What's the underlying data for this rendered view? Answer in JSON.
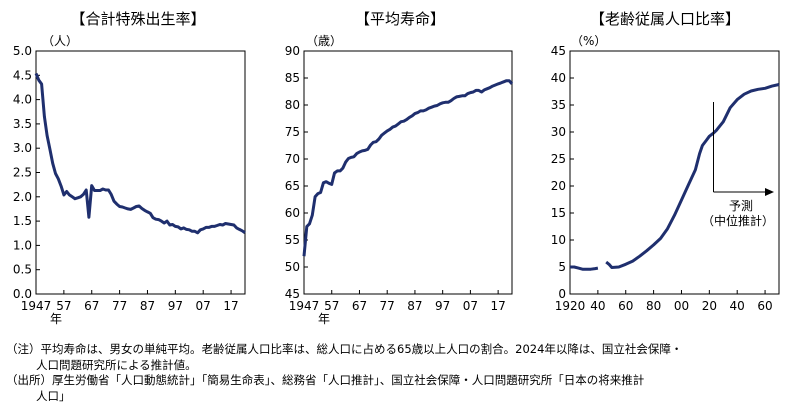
{
  "chart_data": [
    {
      "type": "line",
      "title": "【合計特殊出生率】",
      "ylabel": "（人）",
      "xlabel": "年",
      "ylim": [
        0,
        5
      ],
      "yticks": [
        "0.0",
        "0.5",
        "1.0",
        "1.5",
        "2.0",
        "2.5",
        "3.0",
        "3.5",
        "4.0",
        "4.5",
        "5.0"
      ],
      "xlim": [
        1947,
        2022
      ],
      "xticks": [
        {
          "x": 1947,
          "label": "1947"
        },
        {
          "x": 1957,
          "label": "57"
        },
        {
          "x": 1967,
          "label": "67"
        },
        {
          "x": 1977,
          "label": "77"
        },
        {
          "x": 1987,
          "label": "87"
        },
        {
          "x": 1997,
          "label": "97"
        },
        {
          "x": 2007,
          "label": "07"
        },
        {
          "x": 2017,
          "label": "17"
        }
      ],
      "color": "#1f2f6e",
      "x": [
        1947,
        1948,
        1949,
        1950,
        1951,
        1952,
        1953,
        1954,
        1955,
        1956,
        1957,
        1958,
        1959,
        1960,
        1961,
        1962,
        1963,
        1964,
        1965,
        1966,
        1967,
        1968,
        1969,
        1970,
        1971,
        1972,
        1973,
        1974,
        1975,
        1976,
        1977,
        1978,
        1979,
        1980,
        1981,
        1982,
        1983,
        1984,
        1985,
        1986,
        1987,
        1988,
        1989,
        1990,
        1991,
        1992,
        1993,
        1994,
        1995,
        1996,
        1997,
        1998,
        1999,
        2000,
        2001,
        2002,
        2003,
        2004,
        2005,
        2006,
        2007,
        2008,
        2009,
        2010,
        2011,
        2012,
        2013,
        2014,
        2015,
        2016,
        2017,
        2018,
        2019,
        2020,
        2021,
        2022
      ],
      "y": [
        4.54,
        4.4,
        4.32,
        3.65,
        3.26,
        2.98,
        2.69,
        2.48,
        2.37,
        2.22,
        2.04,
        2.11,
        2.04,
        2.0,
        1.96,
        1.98,
        2.0,
        2.05,
        2.14,
        1.58,
        2.23,
        2.13,
        2.13,
        2.13,
        2.16,
        2.14,
        2.14,
        2.05,
        1.91,
        1.85,
        1.8,
        1.79,
        1.77,
        1.75,
        1.74,
        1.77,
        1.8,
        1.81,
        1.76,
        1.72,
        1.69,
        1.66,
        1.57,
        1.54,
        1.53,
        1.5,
        1.46,
        1.5,
        1.42,
        1.43,
        1.39,
        1.38,
        1.34,
        1.36,
        1.33,
        1.32,
        1.29,
        1.29,
        1.26,
        1.32,
        1.34,
        1.37,
        1.37,
        1.39,
        1.39,
        1.41,
        1.43,
        1.42,
        1.45,
        1.44,
        1.43,
        1.42,
        1.36,
        1.33,
        1.3,
        1.26
      ]
    },
    {
      "type": "line",
      "title": "【平均寿命】",
      "ylabel": "（歳）",
      "xlabel": "年",
      "ylim": [
        45,
        90
      ],
      "yticks": [
        "45",
        "50",
        "55",
        "60",
        "65",
        "70",
        "75",
        "80",
        "85",
        "90"
      ],
      "xlim": [
        1947,
        2022
      ],
      "xticks": [
        {
          "x": 1947,
          "label": "1947"
        },
        {
          "x": 1957,
          "label": "57"
        },
        {
          "x": 1967,
          "label": "67"
        },
        {
          "x": 1977,
          "label": "77"
        },
        {
          "x": 1987,
          "label": "87"
        },
        {
          "x": 1997,
          "label": "97"
        },
        {
          "x": 2007,
          "label": "07"
        },
        {
          "x": 2017,
          "label": "17"
        }
      ],
      "color": "#1f2f6e",
      "x": [
        1947,
        1948,
        1949,
        1950,
        1951,
        1952,
        1953,
        1954,
        1955,
        1956,
        1957,
        1958,
        1959,
        1960,
        1961,
        1962,
        1963,
        1964,
        1965,
        1966,
        1967,
        1968,
        1969,
        1970,
        1971,
        1972,
        1973,
        1974,
        1975,
        1976,
        1977,
        1978,
        1979,
        1980,
        1981,
        1982,
        1983,
        1984,
        1985,
        1986,
        1987,
        1988,
        1989,
        1990,
        1991,
        1992,
        1993,
        1994,
        1995,
        1996,
        1997,
        1998,
        1999,
        2000,
        2001,
        2002,
        2003,
        2004,
        2005,
        2006,
        2007,
        2008,
        2009,
        2010,
        2011,
        2012,
        2013,
        2014,
        2015,
        2016,
        2017,
        2018,
        2019,
        2020,
        2021,
        2022
      ],
      "y": [
        52.0,
        57.5,
        58.0,
        59.6,
        63.0,
        63.6,
        63.8,
        65.6,
        65.8,
        65.5,
        65.3,
        67.4,
        67.8,
        67.8,
        68.3,
        69.4,
        70.1,
        70.3,
        70.4,
        71.0,
        71.3,
        71.5,
        71.6,
        71.8,
        72.6,
        73.1,
        73.2,
        73.7,
        74.4,
        74.8,
        75.2,
        75.5,
        75.9,
        76.1,
        76.5,
        76.9,
        77.0,
        77.3,
        77.7,
        78.0,
        78.4,
        78.6,
        78.9,
        78.9,
        79.1,
        79.4,
        79.6,
        79.8,
        79.9,
        80.2,
        80.4,
        80.5,
        80.5,
        80.8,
        81.2,
        81.5,
        81.6,
        81.7,
        81.7,
        82.1,
        82.3,
        82.4,
        82.7,
        82.7,
        82.4,
        82.8,
        83.0,
        83.2,
        83.5,
        83.7,
        83.9,
        84.1,
        84.3,
        84.5,
        84.5,
        83.9
      ]
    },
    {
      "type": "line",
      "title": "【老齢従属人口比率】",
      "ylabel": "（%）",
      "xlabel": "",
      "ylim": [
        0,
        45
      ],
      "yticks": [
        "0",
        "5",
        "10",
        "15",
        "20",
        "25",
        "30",
        "35",
        "40",
        "45"
      ],
      "xlim": [
        1920,
        2070
      ],
      "xticks": [
        {
          "x": 1920,
          "label": "1920"
        },
        {
          "x": 1940,
          "label": "40"
        },
        {
          "x": 1960,
          "label": "60"
        },
        {
          "x": 1980,
          "label": "80"
        },
        {
          "x": 2000,
          "label": "00"
        },
        {
          "x": 2020,
          "label": "20"
        },
        {
          "x": 2040,
          "label": "40"
        },
        {
          "x": 2060,
          "label": "60"
        }
      ],
      "color": "#1f2f6e",
      "series": [
        {
          "x": [
            1920,
            1923,
            1926,
            1929,
            1932,
            1935,
            1938,
            1940
          ],
          "y": [
            5.0,
            5.0,
            4.8,
            4.6,
            4.6,
            4.6,
            4.7,
            4.8
          ]
        },
        {
          "x": [
            1946,
            1948,
            1950,
            1955,
            1960,
            1965,
            1970,
            1975,
            1980,
            1985,
            1990,
            1995,
            2000,
            2005,
            2010,
            2013,
            2015,
            2018,
            2020,
            2023,
            2025,
            2030,
            2035,
            2040,
            2045,
            2050,
            2055,
            2060,
            2065,
            2070
          ],
          "y": [
            5.9,
            5.5,
            4.9,
            5.0,
            5.5,
            6.1,
            7.0,
            8.0,
            9.1,
            10.3,
            12.1,
            14.6,
            17.4,
            20.2,
            23.0,
            26.0,
            27.5,
            28.5,
            29.2,
            29.8,
            30.3,
            31.9,
            34.5,
            36.0,
            37.0,
            37.6,
            37.9,
            38.1,
            38.5,
            38.8
          ]
        }
      ],
      "annotation": {
        "text_line1": "予測",
        "text_line2": "（中位推計）",
        "x": 2023
      }
    }
  ],
  "notes": {
    "note1_line1": "（注）平均寿命は、男女の単純平均。老齢従属人口比率は、総人口に占める65歳以上人口の割合。2024年以降は、国立社会保障・",
    "note1_line2": "人口問題研究所による推計値。",
    "note2_line1": "（出所）厚生労働省「人口動態統計」「簡易生命表」、総務省「人口推計」、国立社会保障・人口問題研究所「日本の将来推計",
    "note2_line2": "人口」"
  }
}
